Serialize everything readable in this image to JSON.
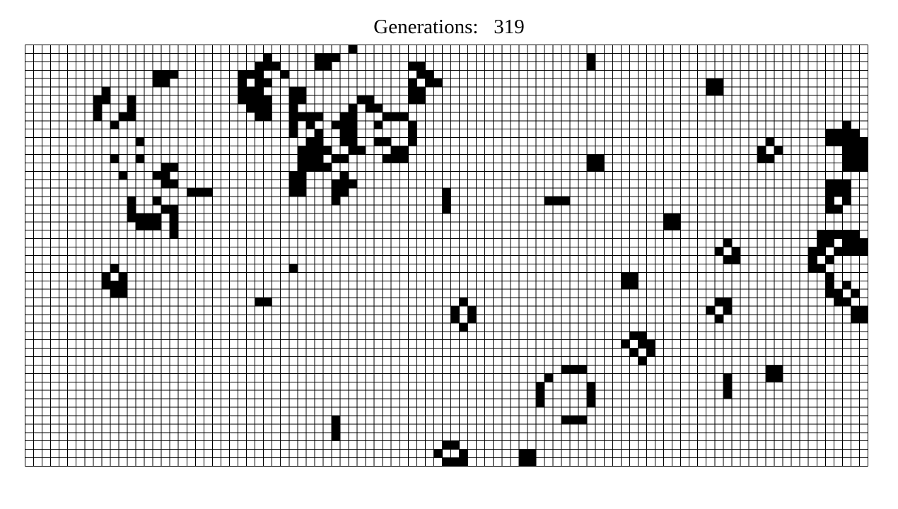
{
  "header": {
    "label": "Generations:",
    "count": "319"
  },
  "grid": {
    "columns": 99,
    "rows": 50,
    "alive_color": "#000000",
    "dead_color": "#ffffff",
    "line_color": "#000000",
    "live_cells": [
      [
        38,
        0
      ],
      [
        28,
        1
      ],
      [
        34,
        1
      ],
      [
        35,
        1
      ],
      [
        36,
        1
      ],
      [
        66,
        1
      ],
      [
        27,
        2
      ],
      [
        28,
        2
      ],
      [
        29,
        2
      ],
      [
        34,
        2
      ],
      [
        35,
        2
      ],
      [
        45,
        2
      ],
      [
        46,
        2
      ],
      [
        66,
        2
      ],
      [
        15,
        3
      ],
      [
        16,
        3
      ],
      [
        17,
        3
      ],
      [
        25,
        3
      ],
      [
        26,
        3
      ],
      [
        27,
        3
      ],
      [
        30,
        3
      ],
      [
        46,
        3
      ],
      [
        47,
        3
      ],
      [
        15,
        4
      ],
      [
        16,
        4
      ],
      [
        25,
        4
      ],
      [
        27,
        4
      ],
      [
        28,
        4
      ],
      [
        45,
        4
      ],
      [
        47,
        4
      ],
      [
        48,
        4
      ],
      [
        80,
        4
      ],
      [
        81,
        4
      ],
      [
        9,
        5
      ],
      [
        25,
        5
      ],
      [
        26,
        5
      ],
      [
        27,
        5
      ],
      [
        31,
        5
      ],
      [
        32,
        5
      ],
      [
        45,
        5
      ],
      [
        46,
        5
      ],
      [
        80,
        5
      ],
      [
        81,
        5
      ],
      [
        8,
        6
      ],
      [
        9,
        6
      ],
      [
        12,
        6
      ],
      [
        25,
        6
      ],
      [
        26,
        6
      ],
      [
        27,
        6
      ],
      [
        28,
        6
      ],
      [
        31,
        6
      ],
      [
        32,
        6
      ],
      [
        39,
        6
      ],
      [
        40,
        6
      ],
      [
        45,
        6
      ],
      [
        46,
        6
      ],
      [
        8,
        7
      ],
      [
        12,
        7
      ],
      [
        26,
        7
      ],
      [
        27,
        7
      ],
      [
        28,
        7
      ],
      [
        31,
        7
      ],
      [
        38,
        7
      ],
      [
        40,
        7
      ],
      [
        41,
        7
      ],
      [
        8,
        8
      ],
      [
        11,
        8
      ],
      [
        12,
        8
      ],
      [
        27,
        8
      ],
      [
        28,
        8
      ],
      [
        31,
        8
      ],
      [
        32,
        8
      ],
      [
        33,
        8
      ],
      [
        34,
        8
      ],
      [
        37,
        8
      ],
      [
        38,
        8
      ],
      [
        42,
        8
      ],
      [
        43,
        8
      ],
      [
        44,
        8
      ],
      [
        10,
        9
      ],
      [
        31,
        9
      ],
      [
        33,
        9
      ],
      [
        36,
        9
      ],
      [
        37,
        9
      ],
      [
        38,
        9
      ],
      [
        41,
        9
      ],
      [
        45,
        9
      ],
      [
        96,
        9
      ],
      [
        31,
        10
      ],
      [
        34,
        10
      ],
      [
        37,
        10
      ],
      [
        38,
        10
      ],
      [
        45,
        10
      ],
      [
        94,
        10
      ],
      [
        95,
        10
      ],
      [
        96,
        10
      ],
      [
        97,
        10
      ],
      [
        13,
        11
      ],
      [
        33,
        11
      ],
      [
        34,
        11
      ],
      [
        37,
        11
      ],
      [
        38,
        11
      ],
      [
        41,
        11
      ],
      [
        42,
        11
      ],
      [
        45,
        11
      ],
      [
        87,
        11
      ],
      [
        94,
        11
      ],
      [
        95,
        11
      ],
      [
        96,
        11
      ],
      [
        97,
        11
      ],
      [
        98,
        11
      ],
      [
        32,
        12
      ],
      [
        33,
        12
      ],
      [
        34,
        12
      ],
      [
        35,
        12
      ],
      [
        38,
        12
      ],
      [
        39,
        12
      ],
      [
        43,
        12
      ],
      [
        44,
        12
      ],
      [
        86,
        12
      ],
      [
        88,
        12
      ],
      [
        96,
        12
      ],
      [
        97,
        12
      ],
      [
        98,
        12
      ],
      [
        10,
        13
      ],
      [
        13,
        13
      ],
      [
        32,
        13
      ],
      [
        33,
        13
      ],
      [
        34,
        13
      ],
      [
        36,
        13
      ],
      [
        37,
        13
      ],
      [
        42,
        13
      ],
      [
        43,
        13
      ],
      [
        44,
        13
      ],
      [
        66,
        13
      ],
      [
        67,
        13
      ],
      [
        86,
        13
      ],
      [
        87,
        13
      ],
      [
        96,
        13
      ],
      [
        97,
        13
      ],
      [
        98,
        13
      ],
      [
        16,
        14
      ],
      [
        17,
        14
      ],
      [
        32,
        14
      ],
      [
        33,
        14
      ],
      [
        34,
        14
      ],
      [
        35,
        14
      ],
      [
        66,
        14
      ],
      [
        67,
        14
      ],
      [
        96,
        14
      ],
      [
        97,
        14
      ],
      [
        98,
        14
      ],
      [
        11,
        15
      ],
      [
        15,
        15
      ],
      [
        16,
        15
      ],
      [
        31,
        15
      ],
      [
        32,
        15
      ],
      [
        37,
        15
      ],
      [
        16,
        16
      ],
      [
        17,
        16
      ],
      [
        31,
        16
      ],
      [
        32,
        16
      ],
      [
        36,
        16
      ],
      [
        37,
        16
      ],
      [
        38,
        16
      ],
      [
        94,
        16
      ],
      [
        95,
        16
      ],
      [
        96,
        16
      ],
      [
        19,
        17
      ],
      [
        20,
        17
      ],
      [
        21,
        17
      ],
      [
        31,
        17
      ],
      [
        32,
        17
      ],
      [
        36,
        17
      ],
      [
        37,
        17
      ],
      [
        49,
        17
      ],
      [
        94,
        17
      ],
      [
        95,
        17
      ],
      [
        96,
        17
      ],
      [
        12,
        18
      ],
      [
        15,
        18
      ],
      [
        36,
        18
      ],
      [
        49,
        18
      ],
      [
        61,
        18
      ],
      [
        62,
        18
      ],
      [
        63,
        18
      ],
      [
        94,
        18
      ],
      [
        96,
        18
      ],
      [
        12,
        19
      ],
      [
        16,
        19
      ],
      [
        17,
        19
      ],
      [
        49,
        19
      ],
      [
        94,
        19
      ],
      [
        95,
        19
      ],
      [
        12,
        20
      ],
      [
        13,
        20
      ],
      [
        14,
        20
      ],
      [
        15,
        20
      ],
      [
        17,
        20
      ],
      [
        75,
        20
      ],
      [
        76,
        20
      ],
      [
        13,
        21
      ],
      [
        14,
        21
      ],
      [
        15,
        21
      ],
      [
        17,
        21
      ],
      [
        75,
        21
      ],
      [
        76,
        21
      ],
      [
        17,
        22
      ],
      [
        93,
        22
      ],
      [
        94,
        22
      ],
      [
        95,
        22
      ],
      [
        96,
        22
      ],
      [
        97,
        22
      ],
      [
        93,
        23
      ],
      [
        94,
        23
      ],
      [
        96,
        23
      ],
      [
        97,
        23
      ],
      [
        98,
        23
      ],
      [
        82,
        23
      ],
      [
        81,
        24
      ],
      [
        83,
        24
      ],
      [
        95,
        24
      ],
      [
        96,
        24
      ],
      [
        97,
        24
      ],
      [
        98,
        24
      ],
      [
        92,
        24
      ],
      [
        93,
        24
      ],
      [
        82,
        25
      ],
      [
        83,
        25
      ],
      [
        92,
        25
      ],
      [
        94,
        25
      ],
      [
        92,
        26
      ],
      [
        93,
        26
      ],
      [
        10,
        26
      ],
      [
        31,
        26
      ],
      [
        92,
        26
      ],
      [
        9,
        27
      ],
      [
        11,
        27
      ],
      [
        70,
        27
      ],
      [
        71,
        27
      ],
      [
        94,
        27
      ],
      [
        9,
        28
      ],
      [
        10,
        28
      ],
      [
        11,
        28
      ],
      [
        70,
        28
      ],
      [
        71,
        28
      ],
      [
        94,
        28
      ],
      [
        96,
        28
      ],
      [
        10,
        29
      ],
      [
        11,
        29
      ],
      [
        94,
        29
      ],
      [
        95,
        29
      ],
      [
        97,
        29
      ],
      [
        95,
        30
      ],
      [
        96,
        30
      ],
      [
        27,
        30
      ],
      [
        28,
        30
      ],
      [
        97,
        31
      ],
      [
        97,
        31
      ],
      [
        98,
        31
      ],
      [
        97,
        32
      ],
      [
        98,
        32
      ],
      [
        81,
        30
      ],
      [
        82,
        30
      ],
      [
        51,
        30
      ],
      [
        80,
        31
      ],
      [
        82,
        31
      ],
      [
        50,
        31
      ],
      [
        52,
        31
      ],
      [
        81,
        32
      ],
      [
        50,
        32
      ],
      [
        52,
        32
      ],
      [
        51,
        33
      ],
      [
        71,
        34
      ],
      [
        72,
        34
      ],
      [
        70,
        35
      ],
      [
        72,
        35
      ],
      [
        73,
        35
      ],
      [
        71,
        36
      ],
      [
        73,
        36
      ],
      [
        72,
        37
      ],
      [
        63,
        38
      ],
      [
        64,
        38
      ],
      [
        65,
        38
      ],
      [
        87,
        38
      ],
      [
        88,
        38
      ],
      [
        87,
        39
      ],
      [
        88,
        39
      ],
      [
        61,
        39
      ],
      [
        82,
        39
      ],
      [
        60,
        40
      ],
      [
        66,
        40
      ],
      [
        82,
        40
      ],
      [
        60,
        41
      ],
      [
        66,
        41
      ],
      [
        82,
        41
      ],
      [
        60,
        42
      ],
      [
        66,
        42
      ],
      [
        63,
        44
      ],
      [
        64,
        44
      ],
      [
        65,
        44
      ],
      [
        36,
        44
      ],
      [
        36,
        45
      ],
      [
        36,
        46
      ],
      [
        49,
        47
      ],
      [
        50,
        47
      ],
      [
        48,
        48
      ],
      [
        51,
        48
      ],
      [
        58,
        48
      ],
      [
        59,
        48
      ],
      [
        49,
        49
      ],
      [
        50,
        49
      ],
      [
        51,
        49
      ],
      [
        58,
        49
      ],
      [
        59,
        49
      ]
    ]
  }
}
